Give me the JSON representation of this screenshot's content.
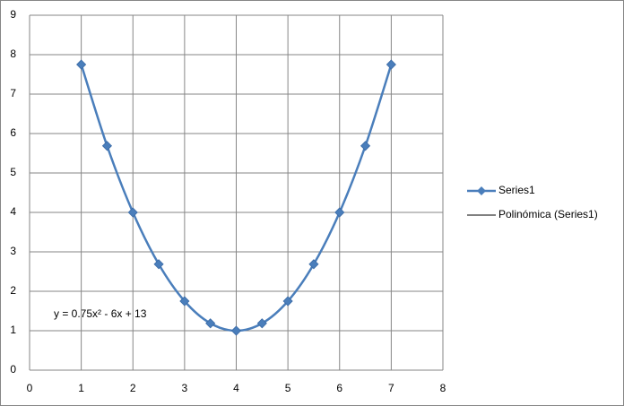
{
  "chart_data": {
    "type": "line",
    "annotation": "y = 0.75x² - 6x + 13",
    "x": [
      1,
      1.5,
      2,
      2.5,
      3,
      3.5,
      4,
      4.5,
      5,
      5.5,
      6,
      6.5,
      7
    ],
    "series": [
      {
        "name": "Series1",
        "color": "#4a7ebb",
        "markers": true,
        "values": [
          7.75,
          5.6875,
          4,
          2.6875,
          1.75,
          1.1875,
          1,
          1.1875,
          1.75,
          2.6875,
          4,
          5.6875,
          7.75
        ]
      },
      {
        "name": "Polinómica (Series1)",
        "color": "#000000",
        "markers": false,
        "values": [
          7.75,
          5.6875,
          4,
          2.6875,
          1.75,
          1.1875,
          1,
          1.1875,
          1.75,
          2.6875,
          4,
          5.6875,
          7.75
        ]
      }
    ],
    "xlim": [
      0,
      8
    ],
    "xticks": [
      0,
      1,
      2,
      3,
      4,
      5,
      6,
      7,
      8
    ],
    "ylim": [
      0,
      9
    ],
    "yticks": [
      0,
      1,
      2,
      3,
      4,
      5,
      6,
      7,
      8,
      9
    ],
    "grid": true,
    "legend": "right"
  }
}
